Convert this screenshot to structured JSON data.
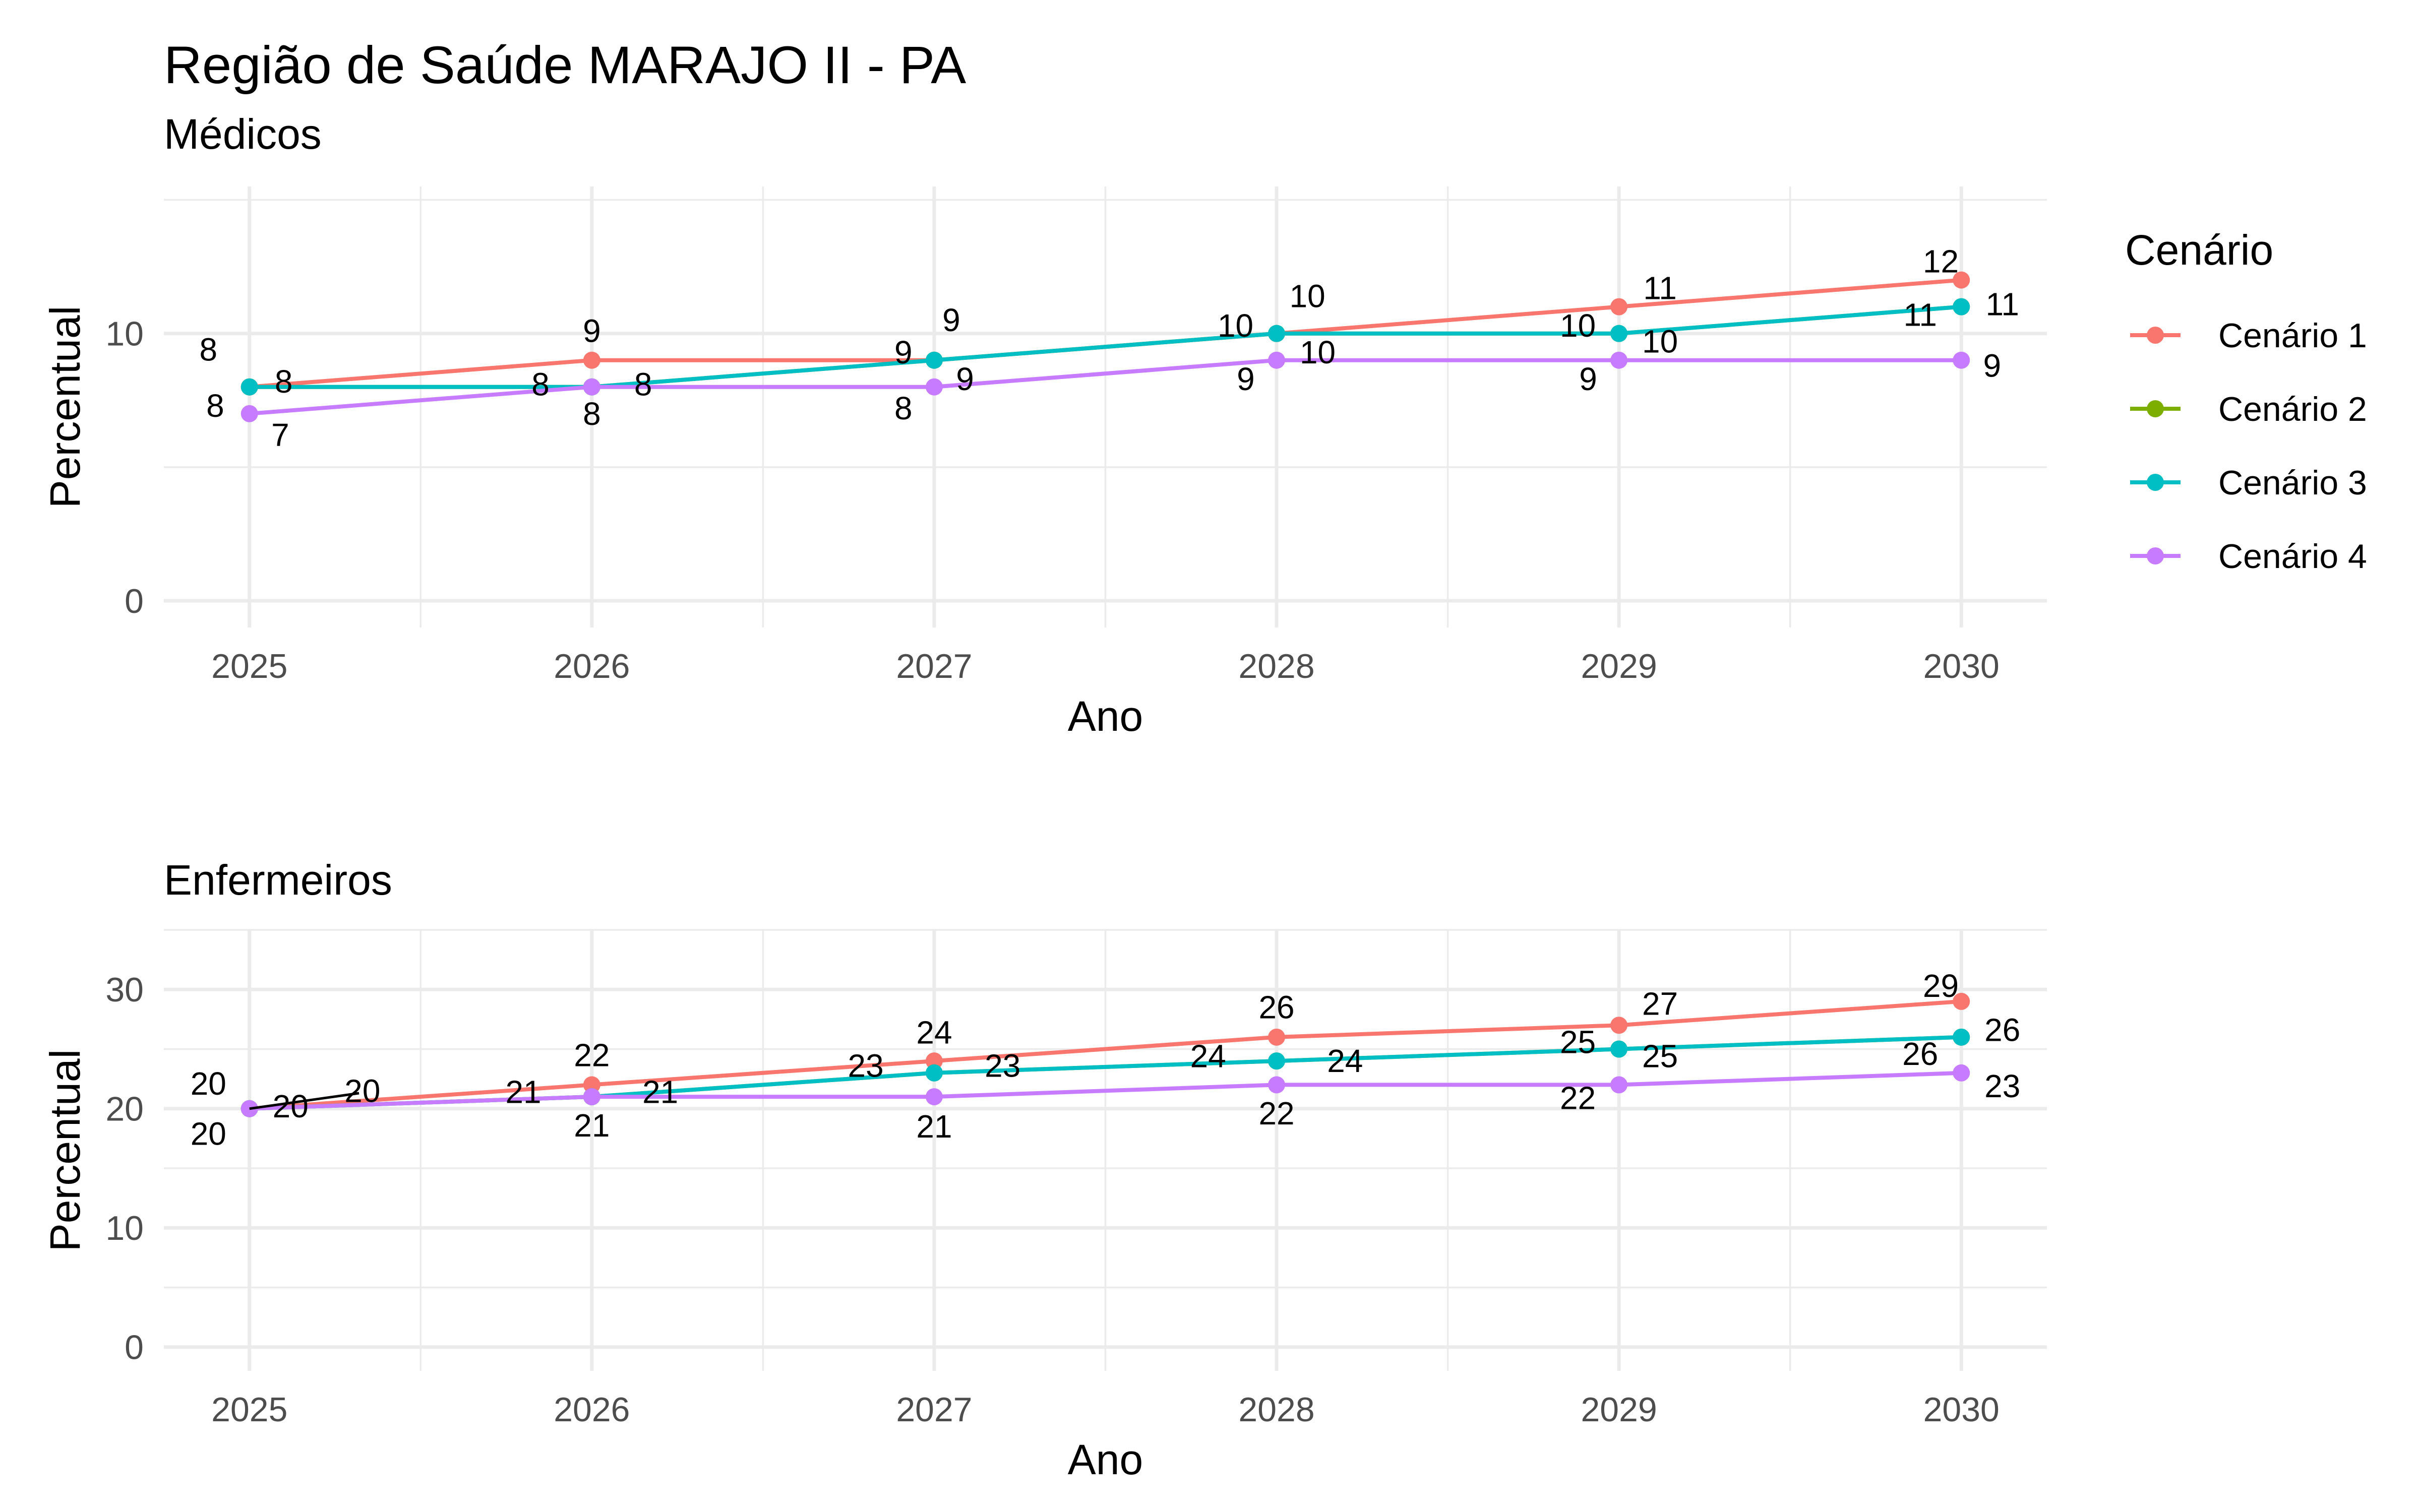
{
  "title": "Região de Saúde MARAJO II - PA",
  "legend": {
    "title": "Cenário",
    "placement": "right",
    "entries": [
      {
        "name": "Cenário 1",
        "color": "#F8766D"
      },
      {
        "name": "Cenário 2",
        "color": "#7CAE00"
      },
      {
        "name": "Cenário 3",
        "color": "#00BFC4"
      },
      {
        "name": "Cenário 4",
        "color": "#C77CFF"
      }
    ]
  },
  "chart_data": [
    {
      "type": "line",
      "title": "Médicos",
      "xlabel": "Ano",
      "ylabel": "Percentual",
      "x": [
        2025,
        2026,
        2027,
        2028,
        2029,
        2030
      ],
      "xticks": [
        "2025",
        "2026",
        "2027",
        "2028",
        "2029",
        "2030"
      ],
      "ylim": [
        -1,
        15.5
      ],
      "yticks": [
        0,
        10
      ],
      "grid": true,
      "series": [
        {
          "name": "Cenário 1",
          "color": "#F8766D",
          "values": [
            8,
            9,
            9,
            10,
            11,
            12
          ]
        },
        {
          "name": "Cenário 2",
          "color": "#7CAE00",
          "values": [
            8,
            8,
            9,
            10,
            10,
            11
          ]
        },
        {
          "name": "Cenário 3",
          "color": "#00BFC4",
          "values": [
            8,
            8,
            9,
            10,
            10,
            11
          ]
        },
        {
          "name": "Cenário 4",
          "color": "#C77CFF",
          "values": [
            7,
            8,
            8,
            9,
            9,
            9
          ]
        }
      ],
      "point_labels": [
        {
          "x": 2025,
          "y": 8,
          "text": "8",
          "dx": -0.12,
          "dy": 1.4
        },
        {
          "x": 2025,
          "y": 8,
          "text": "8",
          "dx": 0.1,
          "dy": 0.2
        },
        {
          "x": 2025,
          "y": 7,
          "text": "8",
          "dx": -0.1,
          "dy": 0.3
        },
        {
          "x": 2025,
          "y": 7,
          "text": "7",
          "dx": 0.09,
          "dy": -0.8
        },
        {
          "x": 2026,
          "y": 9,
          "text": "9",
          "dx": 0,
          "dy": 1.1
        },
        {
          "x": 2026,
          "y": 8,
          "text": "8",
          "dx": -0.15,
          "dy": 0.1
        },
        {
          "x": 2026,
          "y": 8,
          "text": "8",
          "dx": 0.15,
          "dy": 0.1
        },
        {
          "x": 2026,
          "y": 8,
          "text": "8",
          "dx": 0,
          "dy": -1.0
        },
        {
          "x": 2027,
          "y": 9,
          "text": "9",
          "dx": 0.05,
          "dy": 1.5
        },
        {
          "x": 2027,
          "y": 9,
          "text": "9",
          "dx": -0.09,
          "dy": 0.3
        },
        {
          "x": 2027,
          "y": 9,
          "text": "9",
          "dx": 0.09,
          "dy": -0.7
        },
        {
          "x": 2027,
          "y": 8,
          "text": "8",
          "dx": -0.09,
          "dy": -0.8
        },
        {
          "x": 2028,
          "y": 10,
          "text": "10",
          "dx": 0.09,
          "dy": 1.4
        },
        {
          "x": 2028,
          "y": 10,
          "text": "10",
          "dx": -0.12,
          "dy": 0.3
        },
        {
          "x": 2028,
          "y": 9,
          "text": "10",
          "dx": 0.12,
          "dy": 0.3
        },
        {
          "x": 2028,
          "y": 9,
          "text": "9",
          "dx": -0.09,
          "dy": -0.7
        },
        {
          "x": 2029,
          "y": 11,
          "text": "11",
          "dx": 0.12,
          "dy": 0.7
        },
        {
          "x": 2029,
          "y": 10,
          "text": "10",
          "dx": -0.12,
          "dy": 0.3
        },
        {
          "x": 2029,
          "y": 9,
          "text": "10",
          "dx": 0.12,
          "dy": 0.7
        },
        {
          "x": 2029,
          "y": 9,
          "text": "9",
          "dx": -0.09,
          "dy": -0.7
        },
        {
          "x": 2030,
          "y": 12,
          "text": "12",
          "dx": -0.06,
          "dy": 0.7
        },
        {
          "x": 2030,
          "y": 11,
          "text": "11",
          "dx": 0.12,
          "dy": 0.1
        },
        {
          "x": 2030,
          "y": 11,
          "text": "11",
          "dx": -0.12,
          "dy": -0.3
        },
        {
          "x": 2030,
          "y": 9,
          "text": "9",
          "dx": 0.09,
          "dy": -0.2
        }
      ]
    },
    {
      "type": "line",
      "title": "Enfermeiros",
      "xlabel": "Ano",
      "ylabel": "Percentual",
      "x": [
        2025,
        2026,
        2027,
        2028,
        2029,
        2030
      ],
      "xticks": [
        "2025",
        "2026",
        "2027",
        "2028",
        "2029",
        "2030"
      ],
      "ylim": [
        -2,
        35
      ],
      "yticks": [
        0,
        10,
        20,
        30
      ],
      "grid": true,
      "series": [
        {
          "name": "Cenário 1",
          "color": "#F8766D",
          "values": [
            20,
            22,
            24,
            26,
            27,
            29
          ]
        },
        {
          "name": "Cenário 2",
          "color": "#7CAE00",
          "values": [
            20,
            21,
            23,
            24,
            25,
            26
          ]
        },
        {
          "name": "Cenário 3",
          "color": "#00BFC4",
          "values": [
            20,
            21,
            23,
            24,
            25,
            26
          ]
        },
        {
          "name": "Cenário 4",
          "color": "#C77CFF",
          "values": [
            20,
            21,
            21,
            22,
            22,
            23
          ]
        }
      ],
      "point_labels": [
        {
          "x": 2025,
          "y": 20,
          "text": "20",
          "dx": -0.12,
          "dy": 2.1
        },
        {
          "x": 2025,
          "y": 20,
          "text": "20",
          "dx": 0.12,
          "dy": 0.2
        },
        {
          "x": 2025,
          "y": 20,
          "text": "20",
          "dx": 0.33,
          "dy": 1.5
        },
        {
          "x": 2025,
          "y": 20,
          "text": "20",
          "dx": -0.12,
          "dy": -2.1
        },
        {
          "x": 2026,
          "y": 22,
          "text": "22",
          "dx": 0,
          "dy": 2.5
        },
        {
          "x": 2026,
          "y": 21,
          "text": "21",
          "dx": -0.2,
          "dy": 0.4
        },
        {
          "x": 2026,
          "y": 21,
          "text": "21",
          "dx": 0.2,
          "dy": 0.4
        },
        {
          "x": 2026,
          "y": 21,
          "text": "21",
          "dx": 0,
          "dy": -2.4
        },
        {
          "x": 2027,
          "y": 24,
          "text": "24",
          "dx": 0,
          "dy": 2.4
        },
        {
          "x": 2027,
          "y": 23,
          "text": "23",
          "dx": -0.2,
          "dy": 0.6
        },
        {
          "x": 2027,
          "y": 23,
          "text": "23",
          "dx": 0.2,
          "dy": 0.6
        },
        {
          "x": 2027,
          "y": 21,
          "text": "21",
          "dx": 0,
          "dy": -2.5
        },
        {
          "x": 2028,
          "y": 26,
          "text": "26",
          "dx": 0,
          "dy": 2.5
        },
        {
          "x": 2028,
          "y": 24,
          "text": "24",
          "dx": -0.2,
          "dy": 0.4
        },
        {
          "x": 2028,
          "y": 24,
          "text": "24",
          "dx": 0.2,
          "dy": 0
        },
        {
          "x": 2028,
          "y": 22,
          "text": "22",
          "dx": 0,
          "dy": -2.4
        },
        {
          "x": 2029,
          "y": 27,
          "text": "27",
          "dx": 0.12,
          "dy": 1.8
        },
        {
          "x": 2029,
          "y": 25,
          "text": "25",
          "dx": -0.12,
          "dy": 0.6
        },
        {
          "x": 2029,
          "y": 25,
          "text": "25",
          "dx": 0.12,
          "dy": -0.6
        },
        {
          "x": 2029,
          "y": 22,
          "text": "22",
          "dx": -0.12,
          "dy": -1.1
        },
        {
          "x": 2030,
          "y": 29,
          "text": "29",
          "dx": -0.06,
          "dy": 1.3
        },
        {
          "x": 2030,
          "y": 26,
          "text": "26",
          "dx": 0.12,
          "dy": 0.6
        },
        {
          "x": 2030,
          "y": 26,
          "text": "26",
          "dx": -0.12,
          "dy": -1.4
        },
        {
          "x": 2030,
          "y": 23,
          "text": "23",
          "dx": 0.12,
          "dy": -1.1
        }
      ]
    }
  ]
}
